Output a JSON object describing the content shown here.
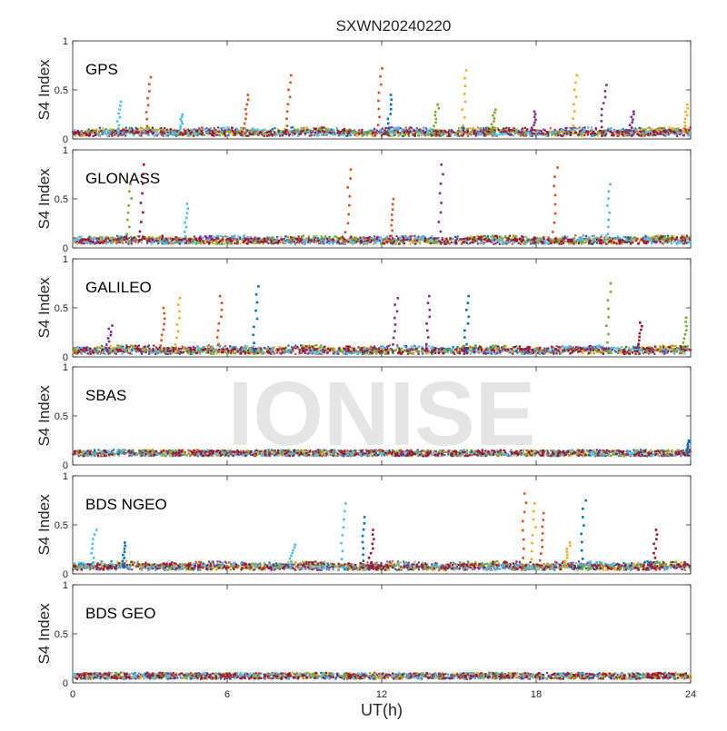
{
  "chart_data": {
    "type": "scatter",
    "title": "SXWN20240220",
    "watermark": "IONISE",
    "xlabel": "UT(h)",
    "ylabel": "S4 Index",
    "xlim": [
      0,
      24
    ],
    "ylim": [
      0,
      1
    ],
    "xticks": [
      "0",
      "6",
      "12",
      "18",
      "24"
    ],
    "yticks": [
      "0",
      "0.5",
      "1"
    ],
    "series_colors": [
      "#0072BD",
      "#D95319",
      "#EDB120",
      "#7E2F8E",
      "#77AC30",
      "#4DBEEE",
      "#A2142F"
    ],
    "panels": [
      {
        "name": "GPS",
        "baseline": 0.06,
        "spikes": [
          {
            "x": 1.8,
            "peak": 0.38,
            "color": "#4DBEEE"
          },
          {
            "x": 2.9,
            "peak": 0.63,
            "color": "#D95319"
          },
          {
            "x": 4.2,
            "peak": 0.25,
            "color": "#4DBEEE"
          },
          {
            "x": 6.7,
            "peak": 0.45,
            "color": "#D95319"
          },
          {
            "x": 8.4,
            "peak": 0.65,
            "color": "#D95319"
          },
          {
            "x": 11.9,
            "peak": 0.72,
            "color": "#D95319"
          },
          {
            "x": 12.3,
            "peak": 0.45,
            "color": "#0072BD"
          },
          {
            "x": 14.1,
            "peak": 0.35,
            "color": "#77AC30"
          },
          {
            "x": 15.2,
            "peak": 0.7,
            "color": "#EDB120"
          },
          {
            "x": 16.3,
            "peak": 0.3,
            "color": "#77AC30"
          },
          {
            "x": 17.9,
            "peak": 0.28,
            "color": "#7E2F8E"
          },
          {
            "x": 19.5,
            "peak": 0.65,
            "color": "#EDB120"
          },
          {
            "x": 20.6,
            "peak": 0.55,
            "color": "#7E2F8E"
          },
          {
            "x": 21.7,
            "peak": 0.28,
            "color": "#7E2F8E"
          },
          {
            "x": 23.8,
            "peak": 0.35,
            "color": "#EDB120"
          }
        ]
      },
      {
        "name": "GLONASS",
        "baseline": 0.07,
        "spikes": [
          {
            "x": 2.2,
            "peak": 0.65,
            "color": "#77AC30"
          },
          {
            "x": 2.7,
            "peak": 0.85,
            "color": "#A2142F"
          },
          {
            "x": 4.4,
            "peak": 0.45,
            "color": "#4DBEEE"
          },
          {
            "x": 10.7,
            "peak": 0.8,
            "color": "#D95319"
          },
          {
            "x": 12.4,
            "peak": 0.5,
            "color": "#D95319"
          },
          {
            "x": 14.3,
            "peak": 0.85,
            "color": "#7E2F8E"
          },
          {
            "x": 18.7,
            "peak": 0.82,
            "color": "#D95319"
          },
          {
            "x": 20.8,
            "peak": 0.65,
            "color": "#4DBEEE"
          }
        ]
      },
      {
        "name": "GALILEO",
        "baseline": 0.06,
        "spikes": [
          {
            "x": 1.4,
            "peak": 0.32,
            "color": "#7E2F8E"
          },
          {
            "x": 3.5,
            "peak": 0.5,
            "color": "#D95319"
          },
          {
            "x": 4.1,
            "peak": 0.6,
            "color": "#EDB120"
          },
          {
            "x": 5.7,
            "peak": 0.62,
            "color": "#D95319"
          },
          {
            "x": 7.1,
            "peak": 0.72,
            "color": "#0072BD"
          },
          {
            "x": 12.5,
            "peak": 0.6,
            "color": "#7E2F8E"
          },
          {
            "x": 13.8,
            "peak": 0.62,
            "color": "#7E2F8E"
          },
          {
            "x": 15.3,
            "peak": 0.62,
            "color": "#0072BD"
          },
          {
            "x": 20.8,
            "peak": 0.75,
            "color": "#77AC30"
          },
          {
            "x": 22.0,
            "peak": 0.35,
            "color": "#A2142F"
          },
          {
            "x": 23.8,
            "peak": 0.4,
            "color": "#77AC30"
          }
        ]
      },
      {
        "name": "SBAS",
        "baseline": 0.12,
        "spikes": [
          {
            "x": 23.9,
            "peak": 0.25,
            "color": "#0072BD"
          }
        ]
      },
      {
        "name": "BDS NGEO",
        "baseline": 0.07,
        "spikes": [
          {
            "x": 0.8,
            "peak": 0.45,
            "color": "#4DBEEE"
          },
          {
            "x": 2.0,
            "peak": 0.32,
            "color": "#0072BD"
          },
          {
            "x": 8.5,
            "peak": 0.3,
            "color": "#4DBEEE"
          },
          {
            "x": 10.5,
            "peak": 0.72,
            "color": "#4DBEEE"
          },
          {
            "x": 11.3,
            "peak": 0.58,
            "color": "#0072BD"
          },
          {
            "x": 11.6,
            "peak": 0.45,
            "color": "#A2142F"
          },
          {
            "x": 17.5,
            "peak": 0.82,
            "color": "#D95319"
          },
          {
            "x": 17.9,
            "peak": 0.72,
            "color": "#EDB120"
          },
          {
            "x": 18.2,
            "peak": 0.62,
            "color": "#D95319"
          },
          {
            "x": 19.2,
            "peak": 0.32,
            "color": "#EDB120"
          },
          {
            "x": 19.8,
            "peak": 0.75,
            "color": "#0072BD"
          },
          {
            "x": 22.6,
            "peak": 0.45,
            "color": "#A2142F"
          }
        ]
      },
      {
        "name": "BDS GEO",
        "baseline": 0.07,
        "spikes": []
      }
    ]
  }
}
